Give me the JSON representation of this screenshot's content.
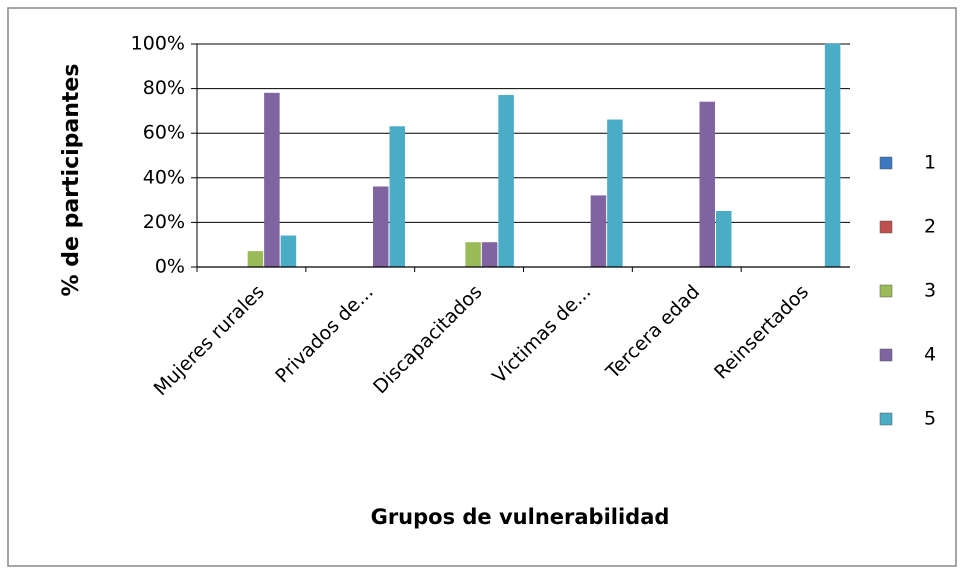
{
  "chart_data": {
    "type": "bar",
    "y_label": "% de participantes",
    "x_label": "Grupos de vulnerabilidad",
    "categories": [
      "Mujeres rurales",
      "Privados de...",
      "Discapacitados",
      "Víctimas de...",
      "Tercera edad",
      "Reinsertados"
    ],
    "series": [
      {
        "name": "1",
        "color": "#3c78c0",
        "values": [
          0,
          0,
          0,
          0,
          0,
          0
        ]
      },
      {
        "name": "2",
        "color": "#c0504d",
        "values": [
          0,
          0,
          0,
          0,
          0,
          0
        ]
      },
      {
        "name": "3",
        "color": "#9bbb59",
        "values": [
          7,
          0,
          11,
          0,
          0,
          0
        ]
      },
      {
        "name": "4",
        "color": "#8064a2",
        "values": [
          78,
          36,
          11,
          32,
          74,
          0
        ]
      },
      {
        "name": "5",
        "color": "#4bacc6",
        "values": [
          14,
          63,
          77,
          66,
          25,
          100
        ]
      }
    ],
    "ylim": [
      0,
      100
    ],
    "yticks": [
      {
        "value": 0,
        "label": "0%"
      },
      {
        "value": 20,
        "label": "20%"
      },
      {
        "value": 40,
        "label": "40%"
      },
      {
        "value": 60,
        "label": "60%"
      },
      {
        "value": 80,
        "label": "80%"
      },
      {
        "value": 100,
        "label": "100%"
      }
    ],
    "grid": true,
    "legend": "right"
  }
}
